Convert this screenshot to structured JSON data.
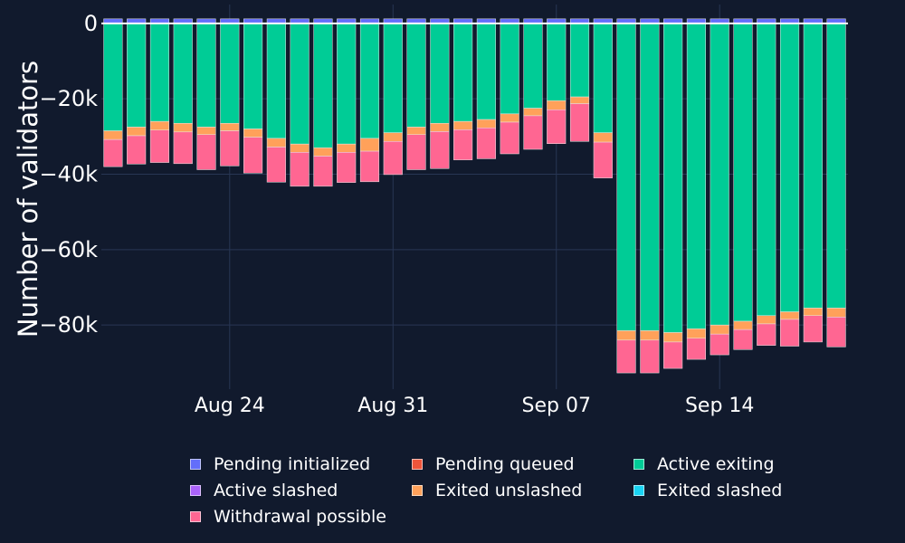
{
  "chart_data": {
    "type": "bar",
    "stacked": true,
    "ylabel": "Number of validators",
    "xlabel": "",
    "x_tick_labels": [
      "Aug 24",
      "Aug 31",
      "Sep 07",
      "Sep 14"
    ],
    "x_tick_dates": [
      "2023-08-24",
      "2023-08-31",
      "2023-09-07",
      "2023-09-14"
    ],
    "y_tick_labels": [
      "0",
      "−20k",
      "−40k",
      "−60k",
      "−80k"
    ],
    "y_tick_values": [
      0,
      -20000,
      -40000,
      -60000,
      -80000
    ],
    "ylim": [
      -97000,
      5000
    ],
    "grid": true,
    "legend_position": "bottom",
    "categories": [
      "2023-08-19",
      "2023-08-20",
      "2023-08-21",
      "2023-08-22",
      "2023-08-23",
      "2023-08-24",
      "2023-08-25",
      "2023-08-26",
      "2023-08-27",
      "2023-08-28",
      "2023-08-29",
      "2023-08-30",
      "2023-08-31",
      "2023-09-01",
      "2023-09-02",
      "2023-09-03",
      "2023-09-04",
      "2023-09-05",
      "2023-09-06",
      "2023-09-07",
      "2023-09-08",
      "2023-09-09",
      "2023-09-10",
      "2023-09-11",
      "2023-09-12",
      "2023-09-13",
      "2023-09-14",
      "2023-09-15",
      "2023-09-16",
      "2023-09-17",
      "2023-09-18",
      "2023-09-19"
    ],
    "series": [
      {
        "name": "Pending initialized",
        "color": "#636efa",
        "values": [
          1200,
          1200,
          1200,
          1200,
          1200,
          1200,
          1200,
          1200,
          1200,
          1200,
          1200,
          1200,
          1200,
          1200,
          1200,
          1200,
          1200,
          1200,
          1200,
          1200,
          1200,
          1200,
          1200,
          1200,
          1200,
          1200,
          1200,
          1200,
          1200,
          1200,
          1200,
          1200
        ]
      },
      {
        "name": "Pending queued",
        "color": "#ef553b",
        "values": [
          0,
          0,
          0,
          0,
          0,
          0,
          0,
          0,
          0,
          0,
          0,
          0,
          0,
          0,
          0,
          0,
          0,
          0,
          0,
          0,
          0,
          0,
          0,
          0,
          0,
          0,
          0,
          0,
          0,
          0,
          0,
          0
        ]
      },
      {
        "name": "Active exiting",
        "color": "#00cc96",
        "values": [
          -28500,
          -27500,
          -26000,
          -26500,
          -27500,
          -26500,
          -28000,
          -30500,
          -32000,
          -33000,
          -32000,
          -30500,
          -29000,
          -27500,
          -26500,
          -26000,
          -25500,
          -24000,
          -22500,
          -20500,
          -19500,
          -29000,
          -81500,
          -81500,
          -82000,
          -81000,
          -80000,
          -79000,
          -77500,
          -76500,
          -75500,
          -75500
        ]
      },
      {
        "name": "Active slashed",
        "color": "#ab63fa",
        "values": [
          0,
          0,
          0,
          0,
          0,
          0,
          0,
          0,
          0,
          0,
          0,
          0,
          0,
          0,
          0,
          0,
          0,
          0,
          0,
          0,
          0,
          0,
          0,
          0,
          0,
          0,
          0,
          0,
          0,
          0,
          0,
          0
        ]
      },
      {
        "name": "Exited unslashed",
        "color": "#ffa15a",
        "values": [
          -2300,
          -2300,
          -2300,
          -2300,
          -2000,
          -2000,
          -2200,
          -2300,
          -2200,
          -2200,
          -2200,
          -3400,
          -2300,
          -2000,
          -2200,
          -2200,
          -2200,
          -2200,
          -2000,
          -2400,
          -1800,
          -2500,
          -2500,
          -2500,
          -2500,
          -2500,
          -2400,
          -2200,
          -2200,
          -2000,
          -2000,
          -2400
        ]
      },
      {
        "name": "Exited slashed",
        "color": "#19d3f3",
        "values": [
          0,
          0,
          0,
          0,
          0,
          0,
          0,
          0,
          0,
          0,
          0,
          0,
          0,
          0,
          0,
          0,
          0,
          0,
          0,
          0,
          0,
          0,
          0,
          0,
          0,
          0,
          0,
          0,
          0,
          0,
          0,
          0
        ]
      },
      {
        "name": "Withdrawal possible",
        "color": "#ff6692",
        "values": [
          -7200,
          -7500,
          -8600,
          -8400,
          -9300,
          -9300,
          -9500,
          -9300,
          -9000,
          -8000,
          -8000,
          -8100,
          -8800,
          -9300,
          -9800,
          -8000,
          -8200,
          -8400,
          -8900,
          -9000,
          -10000,
          -9500,
          -8700,
          -8700,
          -7000,
          -5600,
          -5500,
          -5300,
          -5700,
          -7100,
          -7000,
          -7900
        ]
      }
    ]
  }
}
